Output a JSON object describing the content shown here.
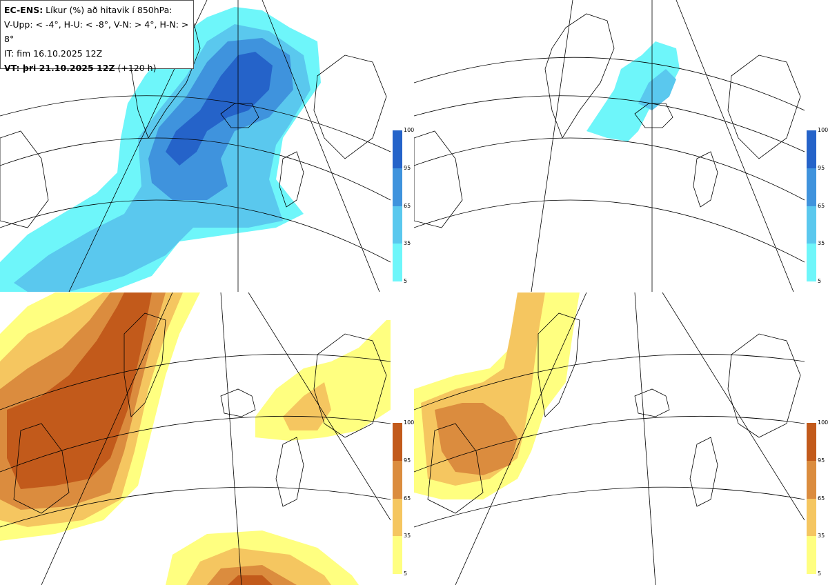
{
  "header": {
    "line1_bold": "EC-ENS:",
    "line1_rest": " Líkur (%) að hitavik í 850hPa:",
    "line2": "V-Upp: < -4°, H-U: < -8°, V-N: > 4°, H-N: > 8°",
    "line3": "IT: fim 16.10.2025 12Z",
    "line4_bold": "VT: þri 21.10.2025 12Z",
    "line4_rest": " (+120 h)"
  },
  "colorbar_cold": {
    "colors": [
      "#6ef6fa",
      "#5ac8ee",
      "#3f93dd",
      "#2563c9"
    ],
    "labels": [
      "100",
      "95",
      "65",
      "35",
      "5"
    ]
  },
  "colorbar_warm": {
    "colors": [
      "#ffff80",
      "#f5c660",
      "#db8c3e",
      "#c25a1b"
    ],
    "labels": [
      "100",
      "95",
      "65",
      "35",
      "5"
    ]
  }
}
